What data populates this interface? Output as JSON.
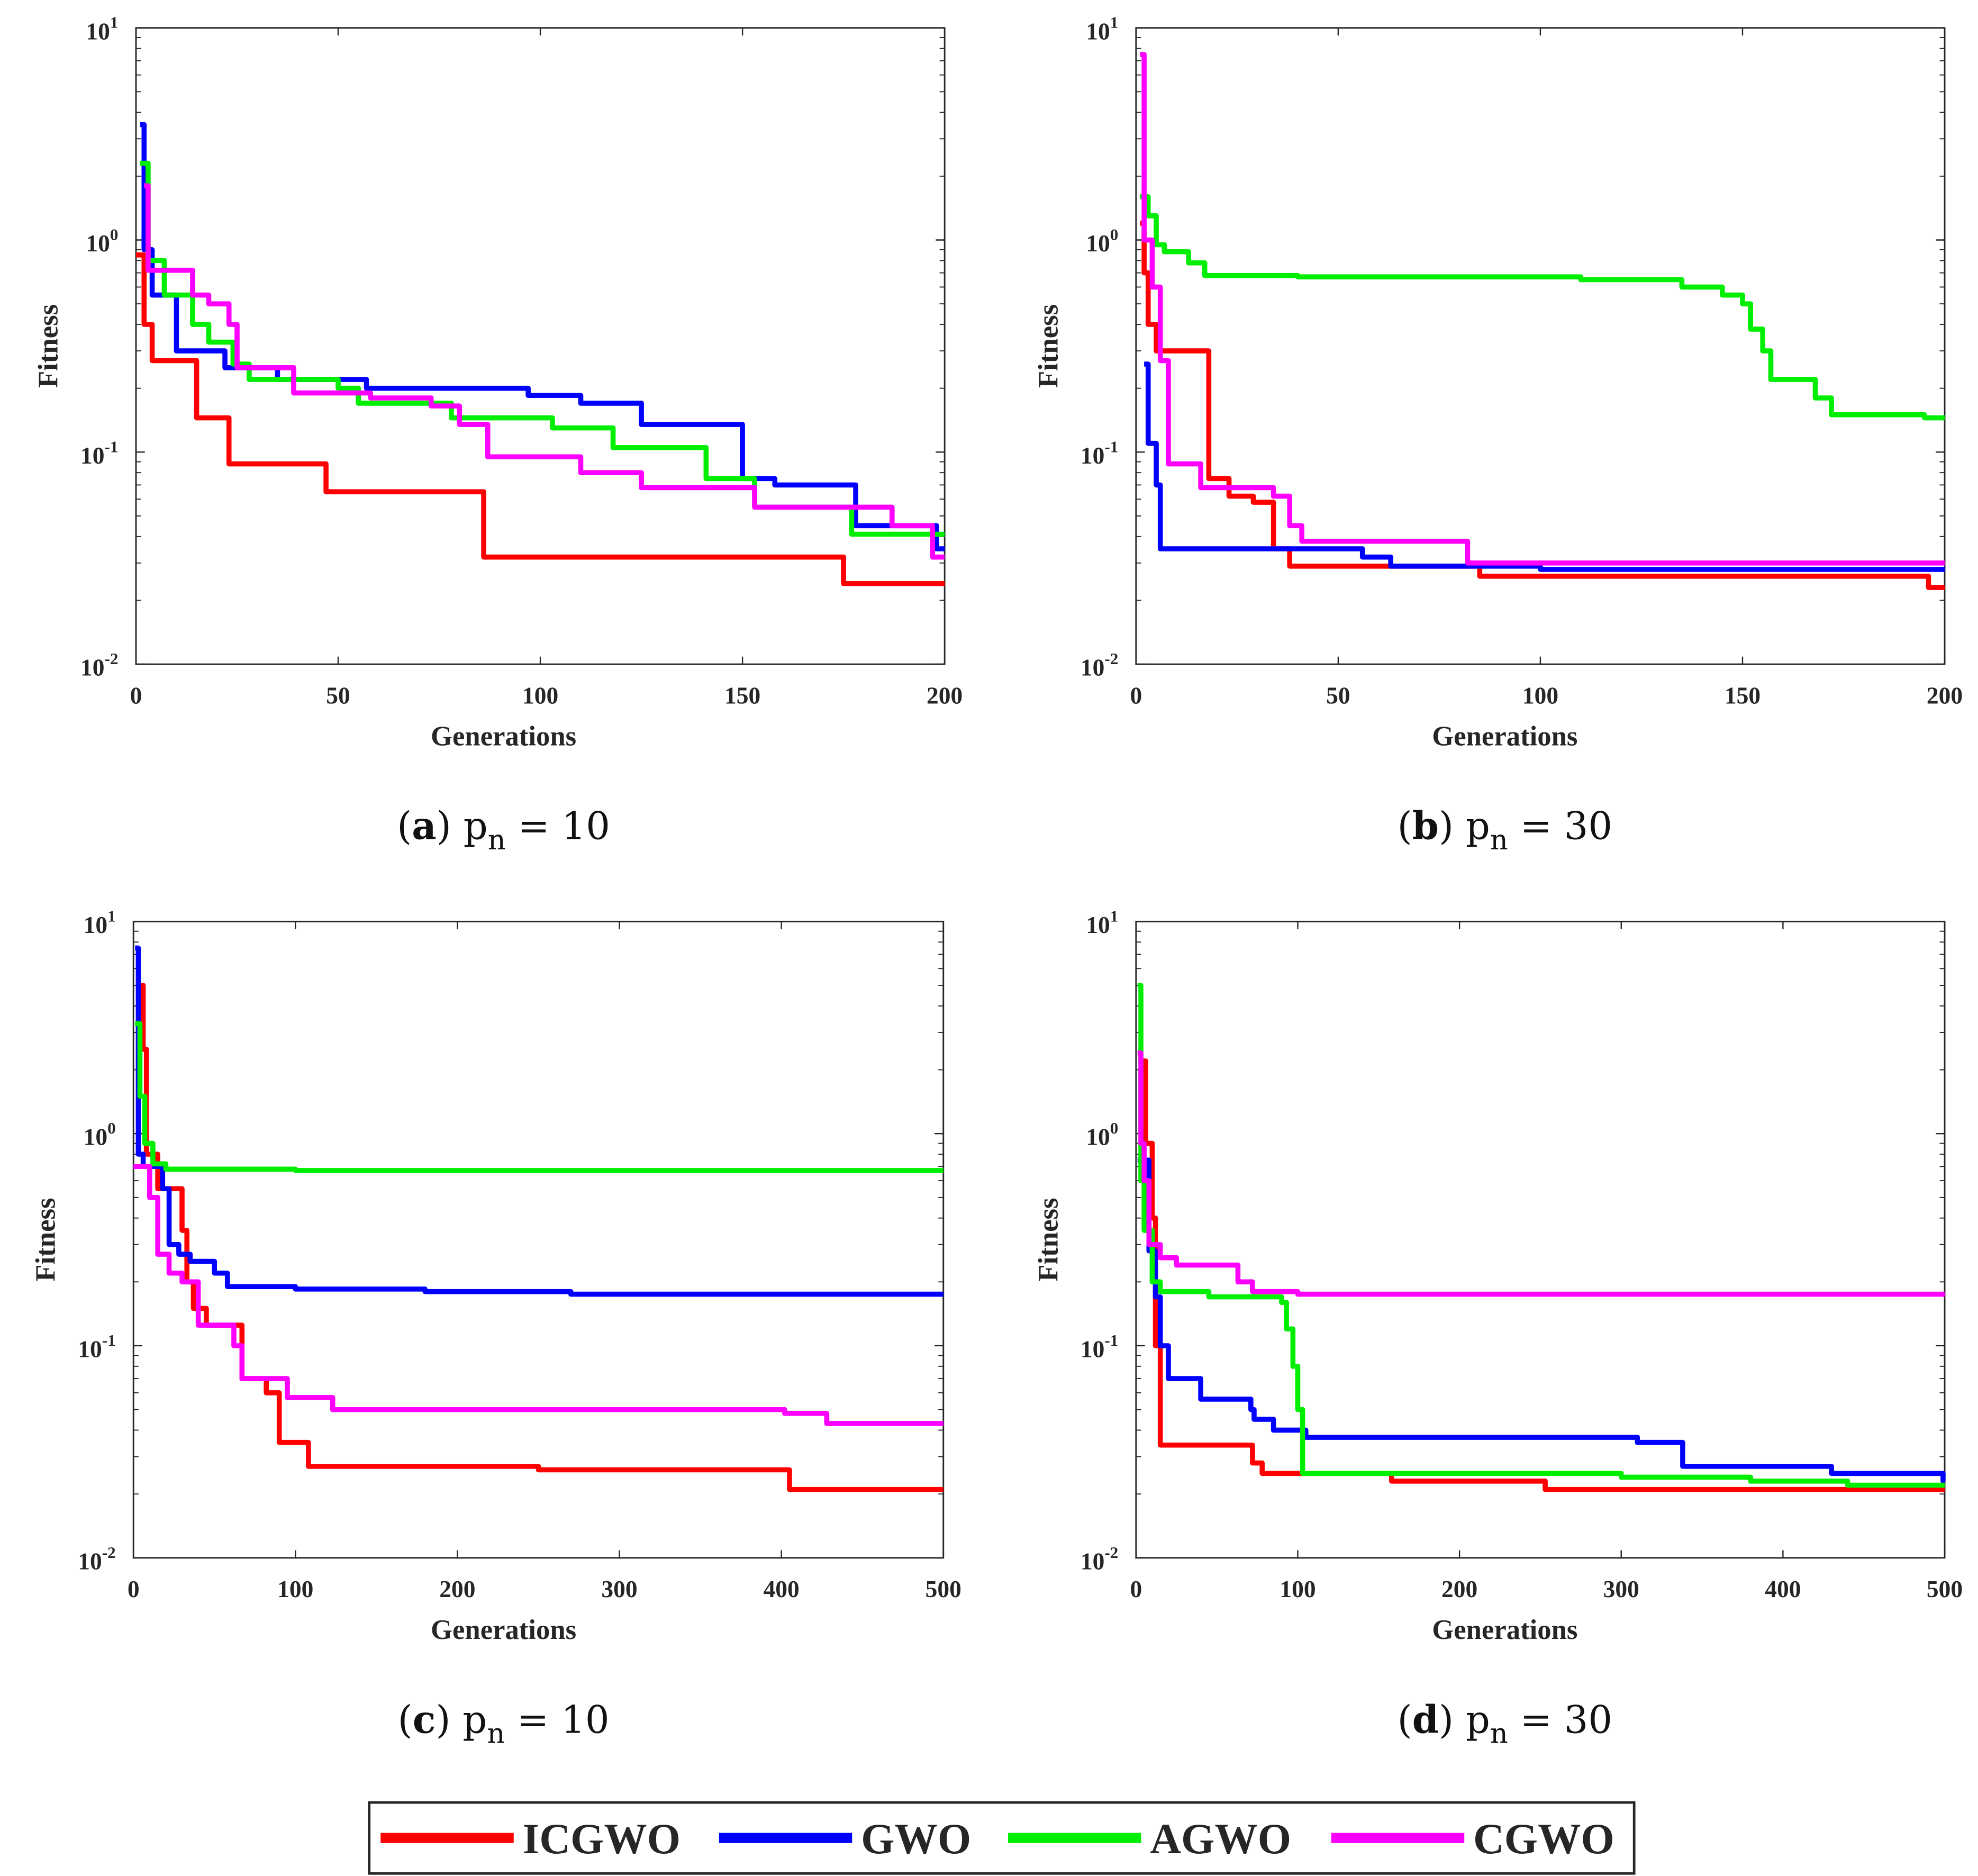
{
  "colors": {
    "ICGWO": "#ff0000",
    "GWO": "#0000ff",
    "AGWO": "#00ee00",
    "CGWO": "#ff00ff"
  },
  "legend": {
    "items": [
      "ICGWO",
      "GWO",
      "AGWO",
      "CGWO"
    ],
    "placement": "bottom-center"
  },
  "chart_data": [
    {
      "type": "line",
      "caption_label": "a",
      "caption_text": "p",
      "caption_sub": "n",
      "caption_value": "= 10",
      "xlabel": "Generations",
      "ylabel": "Fitness",
      "xlim": [
        0,
        200
      ],
      "ylim": [
        0.01,
        10
      ],
      "yscale": "log",
      "xticks": [
        "0",
        "50",
        "100",
        "150",
        "200"
      ],
      "yticks_exp": [
        "-2",
        "-1",
        "0",
        "1"
      ],
      "ytick_base": "10",
      "series": [
        {
          "name": "ICGWO",
          "steps": [
            [
              0,
              0.85
            ],
            [
              2,
              0.4
            ],
            [
              4,
              0.27
            ],
            [
              15,
              0.145
            ],
            [
              23,
              0.088
            ],
            [
              47,
              0.065
            ],
            [
              86,
              0.032
            ],
            [
              175,
              0.024
            ]
          ]
        },
        {
          "name": "GWO",
          "steps": [
            [
              1,
              3.5
            ],
            [
              2,
              0.9
            ],
            [
              4,
              0.55
            ],
            [
              10,
              0.3
            ],
            [
              22,
              0.25
            ],
            [
              35,
              0.22
            ],
            [
              57,
              0.2
            ],
            [
              97,
              0.185
            ],
            [
              110,
              0.17
            ],
            [
              125,
              0.135
            ],
            [
              150,
              0.075
            ],
            [
              158,
              0.07
            ],
            [
              178,
              0.045
            ],
            [
              198,
              0.035
            ]
          ]
        },
        {
          "name": "AGWO",
          "steps": [
            [
              1,
              2.3
            ],
            [
              3,
              0.8
            ],
            [
              7,
              0.55
            ],
            [
              14,
              0.4
            ],
            [
              18,
              0.33
            ],
            [
              24,
              0.26
            ],
            [
              28,
              0.22
            ],
            [
              50,
              0.2
            ],
            [
              55,
              0.17
            ],
            [
              78,
              0.145
            ],
            [
              103,
              0.13
            ],
            [
              118,
              0.105
            ],
            [
              141,
              0.075
            ],
            [
              153,
              0.055
            ],
            [
              177,
              0.041
            ]
          ]
        },
        {
          "name": "CGWO",
          "steps": [
            [
              2,
              1.8
            ],
            [
              3,
              0.72
            ],
            [
              14,
              0.55
            ],
            [
              18,
              0.5
            ],
            [
              23,
              0.4
            ],
            [
              25,
              0.25
            ],
            [
              39,
              0.19
            ],
            [
              58,
              0.18
            ],
            [
              73,
              0.165
            ],
            [
              80,
              0.135
            ],
            [
              87,
              0.095
            ],
            [
              110,
              0.08
            ],
            [
              125,
              0.068
            ],
            [
              153,
              0.055
            ],
            [
              187,
              0.045
            ],
            [
              197,
              0.032
            ]
          ]
        }
      ]
    },
    {
      "type": "line",
      "caption_label": "b",
      "caption_text": "p",
      "caption_sub": "n",
      "caption_value": "= 30",
      "xlabel": "Generations",
      "ylabel": "Fitness",
      "xlim": [
        0,
        200
      ],
      "ylim": [
        0.01,
        10
      ],
      "yscale": "log",
      "xticks": [
        "0",
        "50",
        "100",
        "150",
        "200"
      ],
      "yticks_exp": [
        "-2",
        "-1",
        "0",
        "1"
      ],
      "ytick_base": "10",
      "series": [
        {
          "name": "ICGWO",
          "steps": [
            [
              1,
              1.2
            ],
            [
              2,
              0.7
            ],
            [
              3,
              0.4
            ],
            [
              5,
              0.3
            ],
            [
              18,
              0.075
            ],
            [
              23,
              0.062
            ],
            [
              29,
              0.058
            ],
            [
              34,
              0.035
            ],
            [
              38,
              0.029
            ],
            [
              85,
              0.026
            ],
            [
              196,
              0.023
            ]
          ]
        },
        {
          "name": "GWO",
          "steps": [
            [
              2,
              0.26
            ],
            [
              3,
              0.11
            ],
            [
              5,
              0.07
            ],
            [
              6,
              0.035
            ],
            [
              56,
              0.032
            ],
            [
              63,
              0.029
            ],
            [
              100,
              0.028
            ]
          ]
        },
        {
          "name": "AGWO",
          "steps": [
            [
              1,
              1.6
            ],
            [
              3,
              1.3
            ],
            [
              5,
              0.95
            ],
            [
              7,
              0.88
            ],
            [
              13,
              0.78
            ],
            [
              17,
              0.68
            ],
            [
              40,
              0.67
            ],
            [
              110,
              0.65
            ],
            [
              135,
              0.6
            ],
            [
              145,
              0.55
            ],
            [
              150,
              0.5
            ],
            [
              152,
              0.38
            ],
            [
              155,
              0.3
            ],
            [
              157,
              0.22
            ],
            [
              168,
              0.18
            ],
            [
              172,
              0.15
            ],
            [
              195,
              0.145
            ]
          ]
        },
        {
          "name": "CGWO",
          "steps": [
            [
              1,
              7.5
            ],
            [
              2,
              1.0
            ],
            [
              4,
              0.6
            ],
            [
              6,
              0.27
            ],
            [
              8,
              0.088
            ],
            [
              16,
              0.068
            ],
            [
              34,
              0.062
            ],
            [
              38,
              0.045
            ],
            [
              41,
              0.038
            ],
            [
              82,
              0.03
            ]
          ]
        }
      ]
    },
    {
      "type": "line",
      "caption_label": "c",
      "caption_text": "p",
      "caption_sub": "n",
      "caption_value": "= 10",
      "xlabel": "Generations",
      "ylabel": "Fitness",
      "xlim": [
        0,
        500
      ],
      "ylim": [
        0.01,
        10
      ],
      "yscale": "log",
      "xticks": [
        "0",
        "100",
        "200",
        "300",
        "400",
        "500"
      ],
      "yticks_exp": [
        "-2",
        "-1",
        "0",
        "1"
      ],
      "ytick_base": "10",
      "series": [
        {
          "name": "ICGWO",
          "steps": [
            [
              2,
              5
            ],
            [
              6,
              2.5
            ],
            [
              8,
              0.8
            ],
            [
              15,
              0.55
            ],
            [
              30,
              0.35
            ],
            [
              33,
              0.2
            ],
            [
              37,
              0.15
            ],
            [
              45,
              0.125
            ],
            [
              67,
              0.07
            ],
            [
              82,
              0.06
            ],
            [
              90,
              0.035
            ],
            [
              108,
              0.027
            ],
            [
              250,
              0.026
            ],
            [
              405,
              0.021
            ]
          ]
        },
        {
          "name": "GWO",
          "steps": [
            [
              1,
              7.5
            ],
            [
              3,
              0.8
            ],
            [
              6,
              0.7
            ],
            [
              18,
              0.55
            ],
            [
              22,
              0.3
            ],
            [
              28,
              0.27
            ],
            [
              35,
              0.25
            ],
            [
              50,
              0.22
            ],
            [
              58,
              0.19
            ],
            [
              100,
              0.185
            ],
            [
              180,
              0.18
            ],
            [
              270,
              0.175
            ]
          ]
        },
        {
          "name": "AGWO",
          "steps": [
            [
              1,
              3.3
            ],
            [
              4,
              1.5
            ],
            [
              7,
              0.9
            ],
            [
              12,
              0.72
            ],
            [
              20,
              0.68
            ],
            [
              100,
              0.67
            ]
          ]
        },
        {
          "name": "CGWO",
          "steps": [
            [
              0,
              0.7
            ],
            [
              10,
              0.5
            ],
            [
              15,
              0.27
            ],
            [
              22,
              0.22
            ],
            [
              30,
              0.2
            ],
            [
              40,
              0.125
            ],
            [
              62,
              0.1
            ],
            [
              67,
              0.07
            ],
            [
              95,
              0.057
            ],
            [
              123,
              0.05
            ],
            [
              402,
              0.048
            ],
            [
              428,
              0.043
            ]
          ]
        }
      ]
    },
    {
      "type": "line",
      "caption_label": "d",
      "caption_text": "p",
      "caption_sub": "n",
      "caption_value": "= 30",
      "xlabel": "Generations",
      "ylabel": "Fitness",
      "xlim": [
        0,
        500
      ],
      "ylim": [
        0.01,
        10
      ],
      "yscale": "log",
      "xticks": [
        "0",
        "100",
        "200",
        "300",
        "400",
        "500"
      ],
      "yticks_exp": [
        "-2",
        "-1",
        "0",
        "1"
      ],
      "ytick_base": "10",
      "series": [
        {
          "name": "ICGWO",
          "steps": [
            [
              2,
              2.2
            ],
            [
              6,
              0.9
            ],
            [
              10,
              0.4
            ],
            [
              12,
              0.1
            ],
            [
              15,
              0.034
            ],
            [
              72,
              0.028
            ],
            [
              78,
              0.025
            ],
            [
              158,
              0.023
            ],
            [
              253,
              0.021
            ]
          ]
        },
        {
          "name": "GWO",
          "steps": [
            [
              1,
              0.75
            ],
            [
              8,
              0.28
            ],
            [
              12,
              0.17
            ],
            [
              15,
              0.1
            ],
            [
              20,
              0.07
            ],
            [
              40,
              0.056
            ],
            [
              71,
              0.05
            ],
            [
              73,
              0.045
            ],
            [
              85,
              0.04
            ],
            [
              105,
              0.037
            ],
            [
              310,
              0.035
            ],
            [
              338,
              0.027
            ],
            [
              430,
              0.025
            ],
            [
              499,
              0.023
            ]
          ]
        },
        {
          "name": "AGWO",
          "steps": [
            [
              1,
              5
            ],
            [
              3,
              0.6
            ],
            [
              5,
              0.35
            ],
            [
              10,
              0.2
            ],
            [
              15,
              0.18
            ],
            [
              45,
              0.17
            ],
            [
              90,
              0.16
            ],
            [
              93,
              0.12
            ],
            [
              97,
              0.08
            ],
            [
              100,
              0.05
            ],
            [
              103,
              0.025
            ],
            [
              300,
              0.024
            ],
            [
              380,
              0.023
            ],
            [
              440,
              0.022
            ]
          ]
        },
        {
          "name": "CGWO",
          "steps": [
            [
              1,
              2.4
            ],
            [
              3,
              0.9
            ],
            [
              5,
              0.6
            ],
            [
              8,
              0.3
            ],
            [
              15,
              0.26
            ],
            [
              25,
              0.24
            ],
            [
              63,
              0.2
            ],
            [
              72,
              0.18
            ],
            [
              100,
              0.175
            ]
          ]
        }
      ]
    }
  ]
}
